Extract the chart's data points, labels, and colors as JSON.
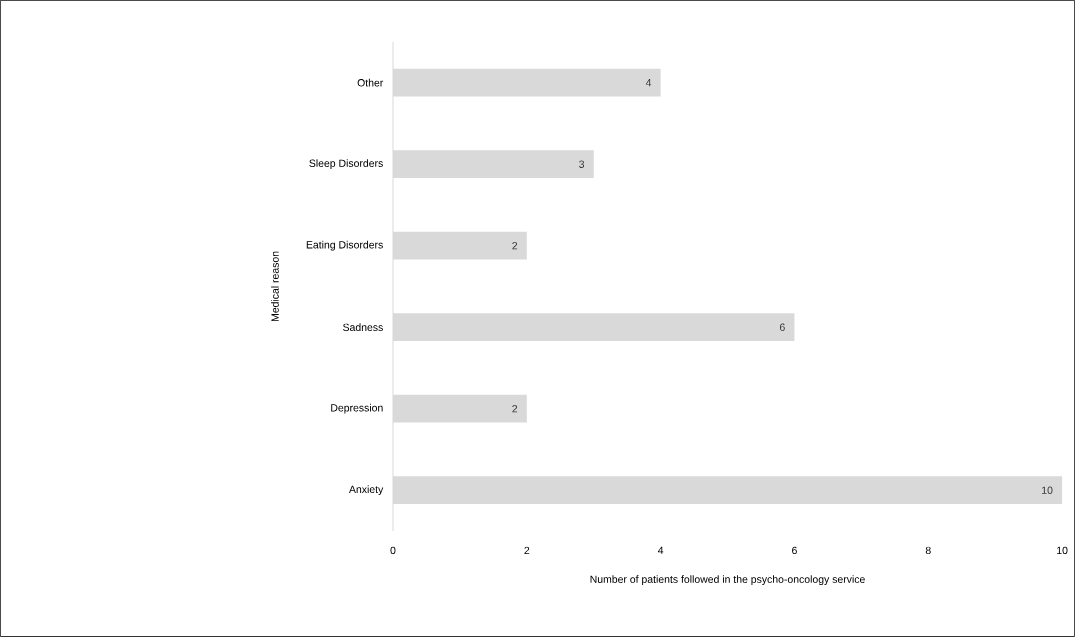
{
  "chart_data": {
    "type": "bar",
    "orientation": "horizontal",
    "xlabel": "Number of patients followed in the psycho-oncology service",
    "ylabel": "Medical reason",
    "categories": [
      "Other",
      "Sleep Disorders",
      "Eating Disorders",
      "Sadness",
      "Depression",
      "Anxiety"
    ],
    "values": [
      4,
      3,
      2,
      6,
      2,
      10
    ],
    "color": "#d9d9d9",
    "xlim": [
      0,
      10
    ],
    "xticks": [
      0,
      2,
      4,
      6,
      8,
      10
    ],
    "data_labels": true
  }
}
